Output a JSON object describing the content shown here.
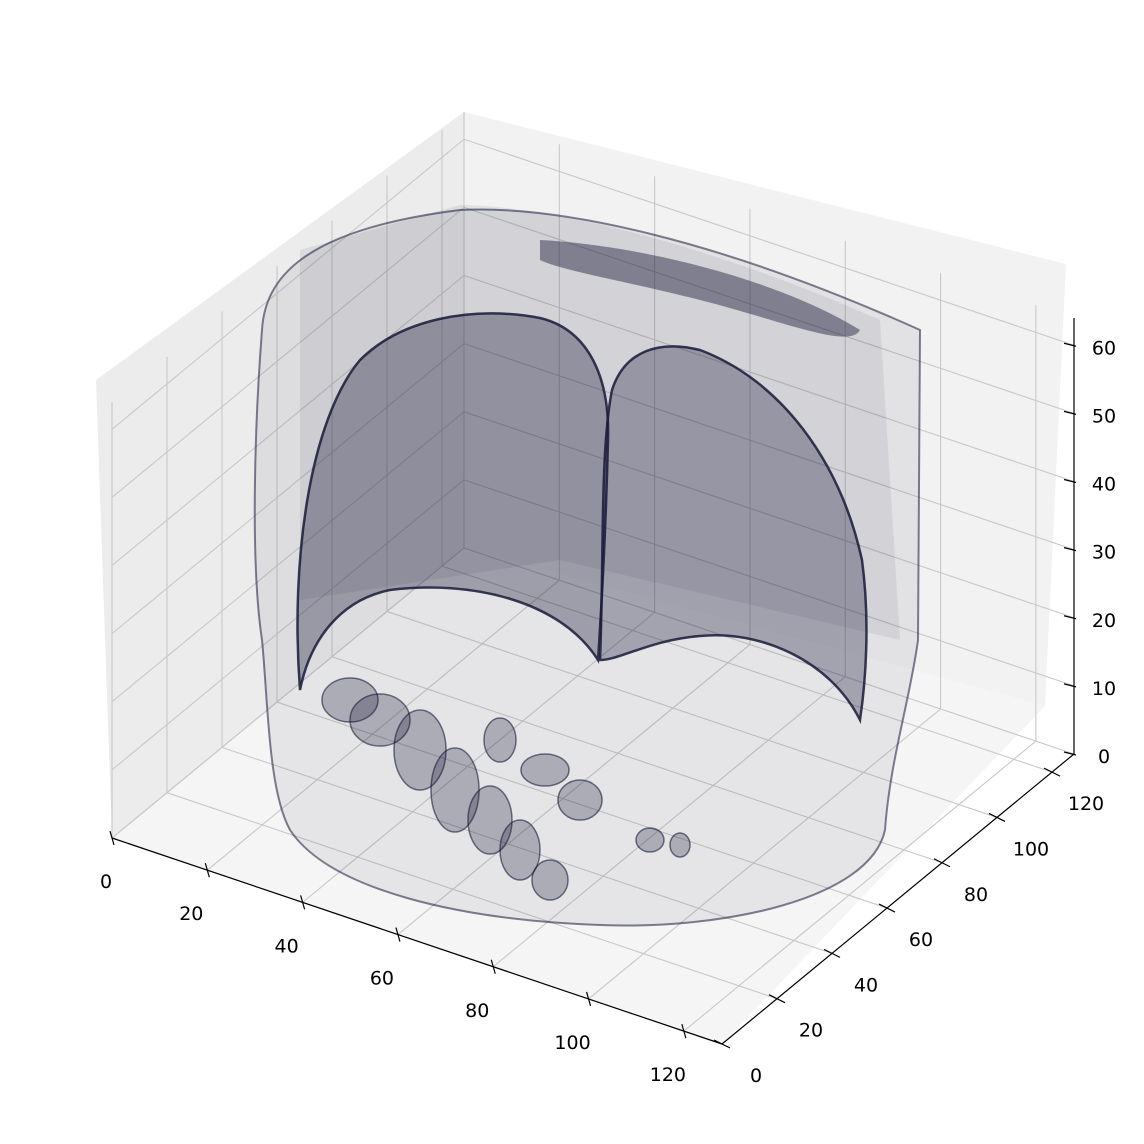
{
  "chart_data": {
    "type": "scatter3d",
    "title": "",
    "xlabel": "",
    "ylabel": "",
    "zlabel": "",
    "xlim": [
      0,
      128
    ],
    "ylim": [
      0,
      128
    ],
    "zlim": [
      0,
      64
    ],
    "x_ticks": [
      "0",
      "20",
      "40",
      "60",
      "80",
      "100",
      "120"
    ],
    "y_ticks": [
      "0",
      "20",
      "40",
      "60",
      "80",
      "100",
      "120"
    ],
    "z_ticks": [
      "0",
      "10",
      "20",
      "30",
      "40",
      "50",
      "60"
    ],
    "grid": true,
    "point_color": "#1a1a3a",
    "pane_colors": {
      "back": "#f2f2f2",
      "side": "#ececec",
      "floor": "#f5f5f5"
    }
  }
}
